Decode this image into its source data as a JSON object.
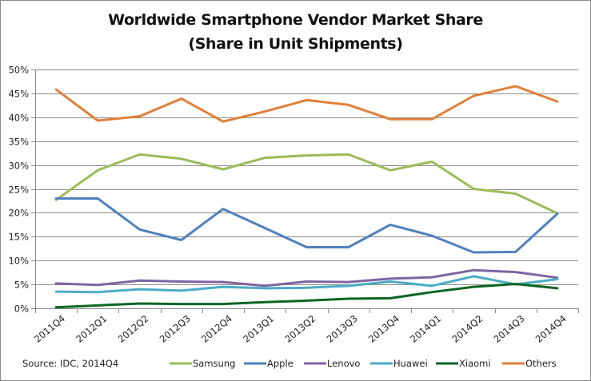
{
  "chart_data": {
    "type": "line",
    "title": "Worldwide Smartphone Vendor Market Share",
    "subtitle": "(Share in Unit Shipments)",
    "xlabel": "",
    "ylabel": "",
    "ylim": [
      0,
      50
    ],
    "y_ticks": [
      "0%",
      "5%",
      "10%",
      "15%",
      "20%",
      "25%",
      "30%",
      "35%",
      "40%",
      "45%",
      "50%"
    ],
    "y_tick_values": [
      0,
      5,
      10,
      15,
      20,
      25,
      30,
      35,
      40,
      45,
      50
    ],
    "grid": "horizontal",
    "legend_position": "bottom-right",
    "annotation": "Source: IDC, 2014Q4",
    "categories": [
      "2011Q4",
      "2012Q1",
      "2012Q2",
      "2012Q3",
      "2012Q4",
      "2013Q1",
      "2013Q2",
      "2013Q3",
      "2013Q4",
      "2014Q1",
      "2014Q2",
      "2014Q3",
      "2014Q4"
    ],
    "series": [
      {
        "name": "Samsung",
        "color": "#9bbb59",
        "values": [
          22.7,
          28.9,
          32.2,
          31.3,
          29.1,
          31.5,
          32.0,
          32.2,
          28.9,
          30.7,
          25.0,
          24.0,
          19.9
        ]
      },
      {
        "name": "Apple",
        "color": "#4f81bd",
        "values": [
          23.0,
          23.0,
          16.5,
          14.3,
          20.8,
          16.8,
          12.8,
          12.8,
          17.5,
          15.2,
          11.7,
          11.8,
          19.8
        ]
      },
      {
        "name": "Lenovo",
        "color": "#8064a2",
        "values": [
          5.2,
          4.9,
          5.8,
          5.6,
          5.5,
          4.7,
          5.6,
          5.5,
          6.2,
          6.5,
          8.0,
          7.6,
          6.4
        ]
      },
      {
        "name": "Huawei",
        "color": "#4bacc6",
        "values": [
          3.5,
          3.4,
          4.0,
          3.7,
          4.5,
          4.2,
          4.3,
          4.7,
          5.6,
          4.7,
          6.7,
          5.0,
          6.1
        ]
      },
      {
        "name": "Xiaomi",
        "color": "#0b6623",
        "values": [
          0.2,
          0.6,
          1.0,
          0.9,
          0.9,
          1.3,
          1.6,
          2.0,
          2.1,
          3.4,
          4.5,
          5.1,
          4.2
        ]
      },
      {
        "name": "Others",
        "color": "#e0803a",
        "values": [
          45.8,
          39.3,
          40.2,
          43.9,
          39.1,
          41.2,
          43.6,
          42.6,
          39.6,
          39.6,
          44.5,
          46.5,
          43.3
        ]
      }
    ]
  }
}
